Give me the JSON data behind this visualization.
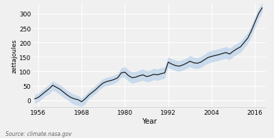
{
  "years": [
    1955,
    1956,
    1957,
    1958,
    1959,
    1960,
    1961,
    1962,
    1963,
    1964,
    1965,
    1966,
    1967,
    1968,
    1969,
    1970,
    1971,
    1972,
    1973,
    1974,
    1975,
    1976,
    1977,
    1978,
    1979,
    1980,
    1981,
    1982,
    1983,
    1984,
    1985,
    1986,
    1987,
    1988,
    1989,
    1990,
    1991,
    1992,
    1993,
    1994,
    1995,
    1996,
    1997,
    1998,
    1999,
    2000,
    2001,
    2002,
    2003,
    2004,
    2005,
    2006,
    2007,
    2008,
    2009,
    2010,
    2011,
    2012,
    2013,
    2014,
    2015,
    2016,
    2017,
    2018
  ],
  "values": [
    5,
    10,
    20,
    30,
    40,
    52,
    45,
    38,
    28,
    18,
    10,
    5,
    2,
    -5,
    5,
    18,
    28,
    38,
    50,
    60,
    65,
    68,
    72,
    78,
    95,
    97,
    85,
    78,
    80,
    85,
    88,
    82,
    85,
    90,
    88,
    92,
    95,
    132,
    125,
    120,
    118,
    122,
    128,
    135,
    130,
    128,
    132,
    140,
    148,
    152,
    155,
    158,
    162,
    165,
    160,
    170,
    178,
    185,
    200,
    215,
    240,
    270,
    300,
    320
  ],
  "lower": [
    -10,
    -5,
    5,
    15,
    22,
    35,
    28,
    20,
    10,
    2,
    -8,
    -15,
    -18,
    -22,
    -12,
    5,
    15,
    25,
    37,
    47,
    51,
    54,
    58,
    65,
    80,
    78,
    66,
    58,
    62,
    66,
    69,
    63,
    66,
    71,
    69,
    73,
    76,
    114,
    107,
    102,
    100,
    104,
    110,
    116,
    111,
    109,
    113,
    121,
    128,
    132,
    135,
    138,
    142,
    145,
    140,
    151,
    159,
    166,
    181,
    196,
    221,
    251,
    282,
    302
  ],
  "upper": [
    20,
    25,
    35,
    45,
    55,
    67,
    60,
    53,
    44,
    34,
    26,
    20,
    16,
    8,
    20,
    32,
    43,
    53,
    65,
    75,
    79,
    82,
    87,
    93,
    112,
    116,
    104,
    98,
    100,
    104,
    108,
    102,
    104,
    110,
    108,
    112,
    115,
    150,
    143,
    138,
    136,
    140,
    146,
    154,
    149,
    147,
    151,
    159,
    168,
    172,
    175,
    178,
    182,
    185,
    180,
    189,
    197,
    204,
    219,
    234,
    259,
    289,
    318,
    338
  ],
  "line_color": "#1a1a1a",
  "fill_color": "#a8c8e8",
  "fill_alpha": 0.55,
  "bg_color": "#f0f0f0",
  "grid_color": "#ffffff",
  "xlabel": "Year",
  "ylabel": "zettajoules",
  "source_text": "Source: climate.nasa.gov",
  "xticks": [
    1956,
    1968,
    1980,
    1992,
    2004,
    2016
  ],
  "yticks": [
    0,
    50,
    100,
    150,
    200,
    250,
    300
  ],
  "ylim": [
    -25,
    335
  ],
  "xlim": [
    1954.5,
    2019
  ]
}
